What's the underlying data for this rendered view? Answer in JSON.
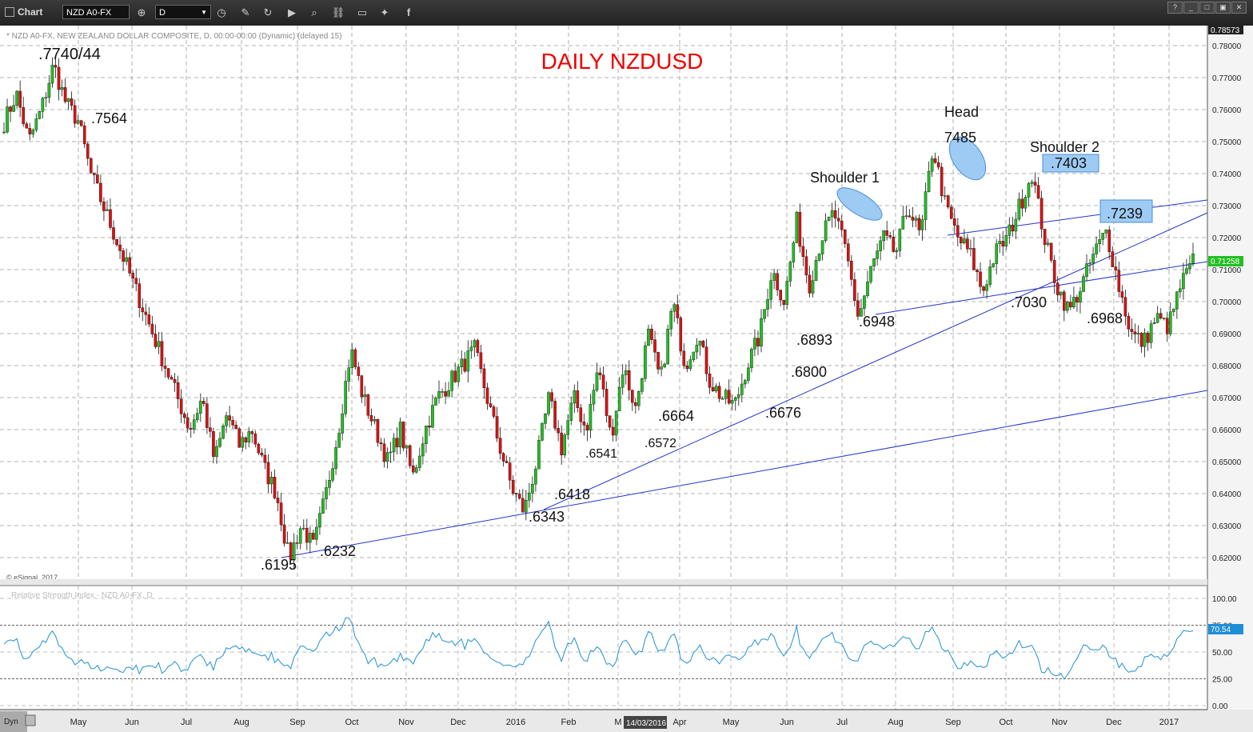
{
  "toolbar": {
    "title": "Chart",
    "symbol": "NZD A0-FX",
    "interval": "D",
    "icons": [
      "crosshair-icon",
      "clock-icon",
      "pencil-icon",
      "refresh-icon",
      "play-icon",
      "zoom-icon",
      "link-icon",
      "comment-icon",
      "twitter-icon",
      "facebook-icon"
    ]
  },
  "chart_header": "* NZD A0-FX, NEW ZEALAND DOLLAR COMPOSITE, D, 00:00-00:00 (Dynamic) (delayed 15)",
  "title": "DAILY NZDUSD",
  "copyright": "© eSignal, 2017",
  "rsi_label": "Relative Strength Index - NZD A0-FX, D",
  "rsi_value_label": "70.54",
  "price_label_top": "0.78573",
  "price_label_current": "0.71258",
  "date_tag": "14/03/2016",
  "dyn": "Dyn",
  "colors": {
    "up": "#22c022",
    "down": "#dd1111",
    "title": "#ee0000",
    "trend": "#2233cc",
    "rsi": "#1f8fd6",
    "annot_fill": "#9ecbf3"
  },
  "chart_data": {
    "type": "candlestick",
    "ylim": [
      0.615,
      0.786
    ],
    "y_ticks": [
      "0.62000",
      "0.63000",
      "0.64000",
      "0.65000",
      "0.66000",
      "0.67000",
      "0.68000",
      "0.69000",
      "0.70000",
      "0.71000",
      "0.72000",
      "0.73000",
      "0.74000",
      "0.75000",
      "0.76000",
      "0.77000",
      "0.78000"
    ],
    "x_ticks": [
      "May",
      "Jun",
      "Jul",
      "Aug",
      "Sep",
      "Oct",
      "Nov",
      "Dec",
      "2016",
      "Feb",
      "M",
      "Apr",
      "May",
      "Jun",
      "Jul",
      "Aug",
      "Sep",
      "Oct",
      "Nov",
      "Dec",
      "2017"
    ],
    "rsi_ticks": [
      "100.00",
      "75.00",
      "50.00",
      "25.00",
      "0.00"
    ],
    "rsi_levels": [
      75,
      25
    ],
    "close_path": [
      0.756,
      0.765,
      0.75,
      0.76,
      0.774,
      0.762,
      0.7564,
      0.74,
      0.73,
      0.72,
      0.71,
      0.7,
      0.69,
      0.68,
      0.67,
      0.66,
      0.67,
      0.65,
      0.665,
      0.655,
      0.66,
      0.648,
      0.64,
      0.6195,
      0.63,
      0.6232,
      0.64,
      0.66,
      0.685,
      0.67,
      0.66,
      0.65,
      0.66,
      0.645,
      0.66,
      0.67,
      0.675,
      0.68,
      0.685,
      0.67,
      0.655,
      0.6418,
      0.6343,
      0.65,
      0.67,
      0.6541,
      0.67,
      0.66,
      0.68,
      0.6572,
      0.68,
      0.6664,
      0.69,
      0.675,
      0.7,
      0.68,
      0.69,
      0.675,
      0.67,
      0.6676,
      0.68,
      0.6893,
      0.71,
      0.7,
      0.725,
      0.705,
      0.72,
      0.728,
      0.715,
      0.6948,
      0.71,
      0.72,
      0.715,
      0.73,
      0.72,
      0.7485,
      0.73,
      0.72,
      0.715,
      0.703,
      0.715,
      0.72,
      0.73,
      0.7403,
      0.72,
      0.705,
      0.6968,
      0.705,
      0.715,
      0.722,
      0.705,
      0.69,
      0.687,
      0.695,
      0.692,
      0.705,
      0.7125
    ],
    "annotations": [
      ".7740/44",
      ".7564",
      ".6195",
      ".6232",
      ".6343",
      ".6418",
      ".6541",
      ".6572",
      ".6664",
      ".6676",
      ".6800",
      ".6893",
      ".6948",
      "Shoulder 1",
      "Head",
      "7485",
      "Shoulder 2",
      ".7403",
      ".7239",
      ".7030",
      ".6968"
    ]
  }
}
